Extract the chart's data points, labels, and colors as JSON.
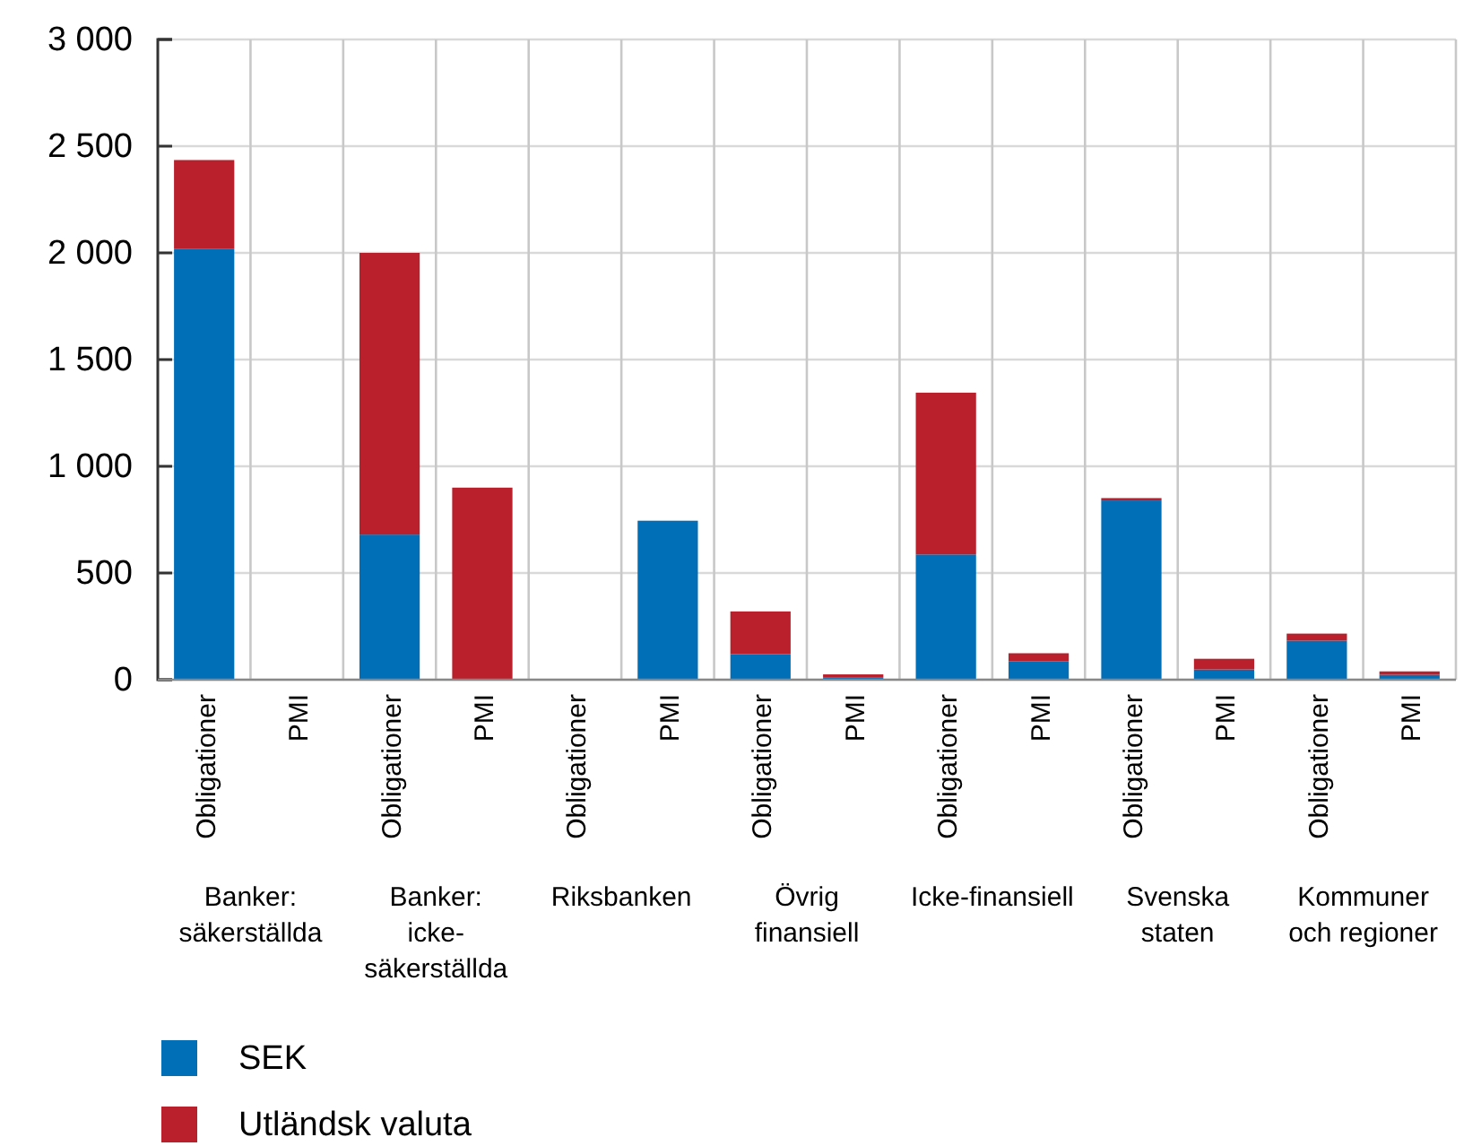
{
  "chart_data": {
    "type": "bar",
    "stacked": true,
    "categories": [
      "Obligationer",
      "PMI",
      "Obligationer",
      "PMI",
      "Obligationer",
      "PMI",
      "Obligationer",
      "PMI",
      "Obligationer",
      "PMI",
      "Obligationer",
      "PMI",
      "Obligationer",
      "PMI"
    ],
    "series": [
      {
        "name": "SEK",
        "color": "#006fb8",
        "values": [
          2020,
          0,
          680,
          0,
          0,
          745,
          120,
          12,
          587,
          87,
          840,
          48,
          183,
          23
        ]
      },
      {
        "name": "Utländsk valuta",
        "color": "#ba1f2c",
        "values": [
          415,
          0,
          1320,
          900,
          0,
          0,
          200,
          13,
          758,
          37,
          11,
          50,
          33,
          16
        ]
      }
    ],
    "ylim": [
      0,
      3000
    ],
    "yticks": [
      {
        "value": 0,
        "label": "0"
      },
      {
        "value": 500,
        "label": "500"
      },
      {
        "value": 1000,
        "label": "1 000"
      },
      {
        "value": 1500,
        "label": "1 500"
      },
      {
        "value": 2000,
        "label": "2 000"
      },
      {
        "value": 2500,
        "label": "2 500"
      },
      {
        "value": 3000,
        "label": "3 000"
      }
    ],
    "grid": true,
    "legend": "bottom",
    "annotations": [
      "Banker:\nsäkerställda",
      "Banker:\nicke-\nsäkerställda",
      "Riksbanken",
      "Övrig\nfinansiell",
      "Icke-finansiell",
      "Svenska\nstaten",
      "Kommuner\noch regioner"
    ]
  }
}
